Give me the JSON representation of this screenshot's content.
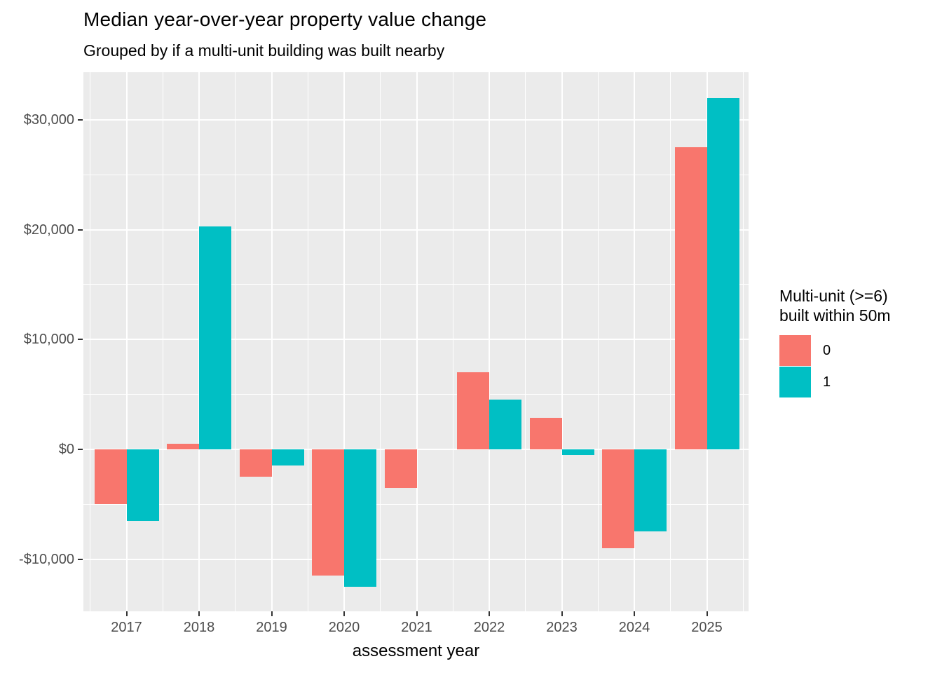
{
  "chart_data": {
    "type": "bar",
    "title": "Median year-over-year property value change",
    "subtitle": "Grouped by if a multi-unit building was built nearby",
    "xlabel": "assessment year",
    "ylabel": "",
    "categories": [
      "2017",
      "2018",
      "2019",
      "2020",
      "2021",
      "2022",
      "2023",
      "2024",
      "2025"
    ],
    "series": [
      {
        "name": "0",
        "color": "#F8766D",
        "values": [
          -5000,
          500,
          -2500,
          -11500,
          -3500,
          7000,
          2900,
          -9000,
          27500
        ]
      },
      {
        "name": "1",
        "color": "#00BFC4",
        "values": [
          -6500,
          20300,
          -1500,
          -12500,
          null,
          4500,
          -500,
          -7500,
          32000
        ]
      }
    ],
    "y_ticks": [
      {
        "value": 30000,
        "label": "$30,000"
      },
      {
        "value": 20000,
        "label": "$20,000"
      },
      {
        "value": 10000,
        "label": "$10,000"
      },
      {
        "value": 0,
        "label": "$0"
      },
      {
        "value": -10000,
        "label": "-$10,000"
      }
    ],
    "y_minor_ticks": [
      25000,
      15000,
      5000,
      -5000
    ],
    "ylim": [
      -14745,
      34340
    ],
    "grid": true,
    "legend_position": "right",
    "legend": {
      "title_lines": [
        "Multi-unit (>=6)",
        "built within 50m"
      ],
      "entries": [
        "0",
        "1"
      ]
    },
    "colors": {
      "panel_bg": "#EBEBEB",
      "grid": "#FFFFFF",
      "axis_text": "#4D4D4D",
      "tick_mark": "#333333",
      "title_text": "#000000"
    }
  }
}
